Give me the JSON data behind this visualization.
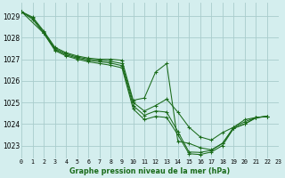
{
  "title": "Graphe pression niveau de la mer (hPa)",
  "bg_color": "#d4eeee",
  "grid_color": "#a8cccc",
  "line_color": "#1a6b1a",
  "marker_color": "#1a6b1a",
  "xlim": [
    0,
    23
  ],
  "ylim": [
    1022.4,
    1029.6
  ],
  "yticks": [
    1023,
    1024,
    1025,
    1026,
    1027,
    1028,
    1029
  ],
  "xticks": [
    0,
    1,
    2,
    3,
    4,
    5,
    6,
    7,
    8,
    9,
    10,
    11,
    12,
    13,
    14,
    15,
    16,
    17,
    18,
    19,
    20,
    21,
    22,
    23
  ],
  "series": [
    {
      "x": [
        0,
        1,
        2,
        3,
        4,
        5,
        6,
        7,
        8,
        9,
        10,
        11,
        12,
        13,
        14,
        15,
        16,
        17,
        18,
        19,
        20,
        21,
        22
      ],
      "y": [
        1029.2,
        1028.95,
        1028.3,
        1027.55,
        1027.3,
        1027.15,
        1027.05,
        1027.0,
        1027.0,
        1026.95,
        1025.1,
        1025.2,
        1026.4,
        1026.8,
        1023.2,
        1023.1,
        1022.9,
        1022.8,
        1023.1,
        1023.8,
        1024.0,
        1024.3,
        1024.35
      ]
    },
    {
      "x": [
        0,
        1,
        2,
        3,
        4,
        5,
        6,
        7,
        8,
        9,
        10,
        11,
        12,
        13,
        14,
        15,
        16,
        17,
        18,
        19,
        20,
        21,
        22
      ],
      "y": [
        1029.2,
        1028.9,
        1028.25,
        1027.5,
        1027.25,
        1027.1,
        1027.0,
        1026.95,
        1026.9,
        1026.8,
        1025.0,
        1024.6,
        1024.85,
        1025.15,
        1024.55,
        1023.85,
        1023.4,
        1023.25,
        1023.6,
        1023.85,
        1024.2,
        1024.3,
        1024.35
      ]
    },
    {
      "x": [
        0,
        1,
        2,
        3,
        4,
        5,
        6,
        7,
        8,
        9,
        10,
        11,
        12,
        13,
        14,
        15,
        16,
        17,
        18,
        19,
        20,
        21,
        22
      ],
      "y": [
        1029.2,
        1028.85,
        1028.2,
        1027.45,
        1027.2,
        1027.05,
        1026.95,
        1026.88,
        1026.82,
        1026.7,
        1024.85,
        1024.4,
        1024.6,
        1024.55,
        1023.65,
        1022.7,
        1022.68,
        1022.78,
        1023.1,
        1023.85,
        1024.1,
        1024.3,
        1024.35
      ]
    },
    {
      "x": [
        0,
        2,
        3,
        4,
        5,
        6,
        7,
        8,
        9,
        10,
        11,
        12,
        13,
        14,
        15,
        16,
        17,
        18,
        19,
        20,
        21,
        22
      ],
      "y": [
        1029.2,
        1028.2,
        1027.4,
        1027.15,
        1027.0,
        1026.88,
        1026.8,
        1026.72,
        1026.6,
        1024.7,
        1024.2,
        1024.35,
        1024.3,
        1023.5,
        1022.62,
        1022.58,
        1022.7,
        1023.0,
        1023.8,
        1024.0,
        1024.28,
        1024.35
      ]
    }
  ]
}
